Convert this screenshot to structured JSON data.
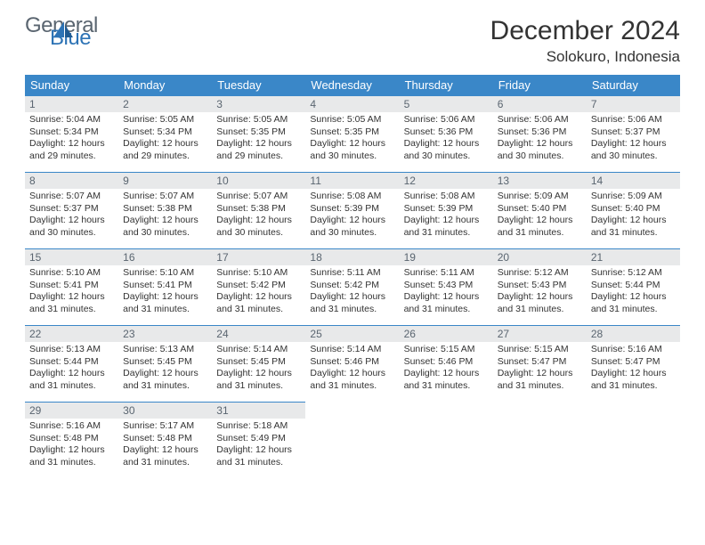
{
  "logo": {
    "line1": "General",
    "line2": "Blue"
  },
  "title": {
    "month": "December 2024",
    "location": "Solokuro, Indonesia"
  },
  "colors": {
    "header_bg": "#3a87c8",
    "header_fg": "#ffffff",
    "daynum_bg": "#e8e9ea",
    "daynum_fg": "#5a6570",
    "row_border": "#3a87c8",
    "logo_gray": "#5a6570",
    "logo_blue": "#2d73b5"
  },
  "weekdays": [
    "Sunday",
    "Monday",
    "Tuesday",
    "Wednesday",
    "Thursday",
    "Friday",
    "Saturday"
  ],
  "weeks": [
    [
      {
        "n": "1",
        "sr": "5:04 AM",
        "ss": "5:34 PM",
        "dl": "12 hours and 29 minutes."
      },
      {
        "n": "2",
        "sr": "5:05 AM",
        "ss": "5:34 PM",
        "dl": "12 hours and 29 minutes."
      },
      {
        "n": "3",
        "sr": "5:05 AM",
        "ss": "5:35 PM",
        "dl": "12 hours and 29 minutes."
      },
      {
        "n": "4",
        "sr": "5:05 AM",
        "ss": "5:35 PM",
        "dl": "12 hours and 30 minutes."
      },
      {
        "n": "5",
        "sr": "5:06 AM",
        "ss": "5:36 PM",
        "dl": "12 hours and 30 minutes."
      },
      {
        "n": "6",
        "sr": "5:06 AM",
        "ss": "5:36 PM",
        "dl": "12 hours and 30 minutes."
      },
      {
        "n": "7",
        "sr": "5:06 AM",
        "ss": "5:37 PM",
        "dl": "12 hours and 30 minutes."
      }
    ],
    [
      {
        "n": "8",
        "sr": "5:07 AM",
        "ss": "5:37 PM",
        "dl": "12 hours and 30 minutes."
      },
      {
        "n": "9",
        "sr": "5:07 AM",
        "ss": "5:38 PM",
        "dl": "12 hours and 30 minutes."
      },
      {
        "n": "10",
        "sr": "5:07 AM",
        "ss": "5:38 PM",
        "dl": "12 hours and 30 minutes."
      },
      {
        "n": "11",
        "sr": "5:08 AM",
        "ss": "5:39 PM",
        "dl": "12 hours and 30 minutes."
      },
      {
        "n": "12",
        "sr": "5:08 AM",
        "ss": "5:39 PM",
        "dl": "12 hours and 31 minutes."
      },
      {
        "n": "13",
        "sr": "5:09 AM",
        "ss": "5:40 PM",
        "dl": "12 hours and 31 minutes."
      },
      {
        "n": "14",
        "sr": "5:09 AM",
        "ss": "5:40 PM",
        "dl": "12 hours and 31 minutes."
      }
    ],
    [
      {
        "n": "15",
        "sr": "5:10 AM",
        "ss": "5:41 PM",
        "dl": "12 hours and 31 minutes."
      },
      {
        "n": "16",
        "sr": "5:10 AM",
        "ss": "5:41 PM",
        "dl": "12 hours and 31 minutes."
      },
      {
        "n": "17",
        "sr": "5:10 AM",
        "ss": "5:42 PM",
        "dl": "12 hours and 31 minutes."
      },
      {
        "n": "18",
        "sr": "5:11 AM",
        "ss": "5:42 PM",
        "dl": "12 hours and 31 minutes."
      },
      {
        "n": "19",
        "sr": "5:11 AM",
        "ss": "5:43 PM",
        "dl": "12 hours and 31 minutes."
      },
      {
        "n": "20",
        "sr": "5:12 AM",
        "ss": "5:43 PM",
        "dl": "12 hours and 31 minutes."
      },
      {
        "n": "21",
        "sr": "5:12 AM",
        "ss": "5:44 PM",
        "dl": "12 hours and 31 minutes."
      }
    ],
    [
      {
        "n": "22",
        "sr": "5:13 AM",
        "ss": "5:44 PM",
        "dl": "12 hours and 31 minutes."
      },
      {
        "n": "23",
        "sr": "5:13 AM",
        "ss": "5:45 PM",
        "dl": "12 hours and 31 minutes."
      },
      {
        "n": "24",
        "sr": "5:14 AM",
        "ss": "5:45 PM",
        "dl": "12 hours and 31 minutes."
      },
      {
        "n": "25",
        "sr": "5:14 AM",
        "ss": "5:46 PM",
        "dl": "12 hours and 31 minutes."
      },
      {
        "n": "26",
        "sr": "5:15 AM",
        "ss": "5:46 PM",
        "dl": "12 hours and 31 minutes."
      },
      {
        "n": "27",
        "sr": "5:15 AM",
        "ss": "5:47 PM",
        "dl": "12 hours and 31 minutes."
      },
      {
        "n": "28",
        "sr": "5:16 AM",
        "ss": "5:47 PM",
        "dl": "12 hours and 31 minutes."
      }
    ],
    [
      {
        "n": "29",
        "sr": "5:16 AM",
        "ss": "5:48 PM",
        "dl": "12 hours and 31 minutes."
      },
      {
        "n": "30",
        "sr": "5:17 AM",
        "ss": "5:48 PM",
        "dl": "12 hours and 31 minutes."
      },
      {
        "n": "31",
        "sr": "5:18 AM",
        "ss": "5:49 PM",
        "dl": "12 hours and 31 minutes."
      },
      null,
      null,
      null,
      null
    ]
  ],
  "labels": {
    "sunrise": "Sunrise:",
    "sunset": "Sunset:",
    "daylight": "Daylight:"
  }
}
